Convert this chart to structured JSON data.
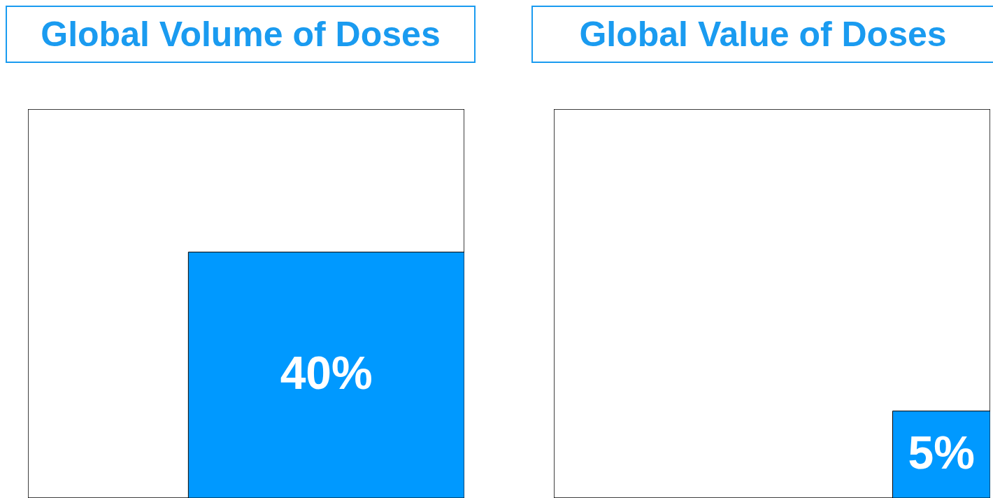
{
  "chart_data": [
    {
      "type": "other",
      "title": "Global Volume of Doses",
      "values": [
        40
      ],
      "value_labels": [
        "40%"
      ],
      "colors": [
        "#0099ff"
      ]
    },
    {
      "type": "other",
      "title": "Global Value of Doses",
      "values": [
        5
      ],
      "value_labels": [
        "5%"
      ],
      "colors": [
        "#0099ff"
      ]
    }
  ]
}
